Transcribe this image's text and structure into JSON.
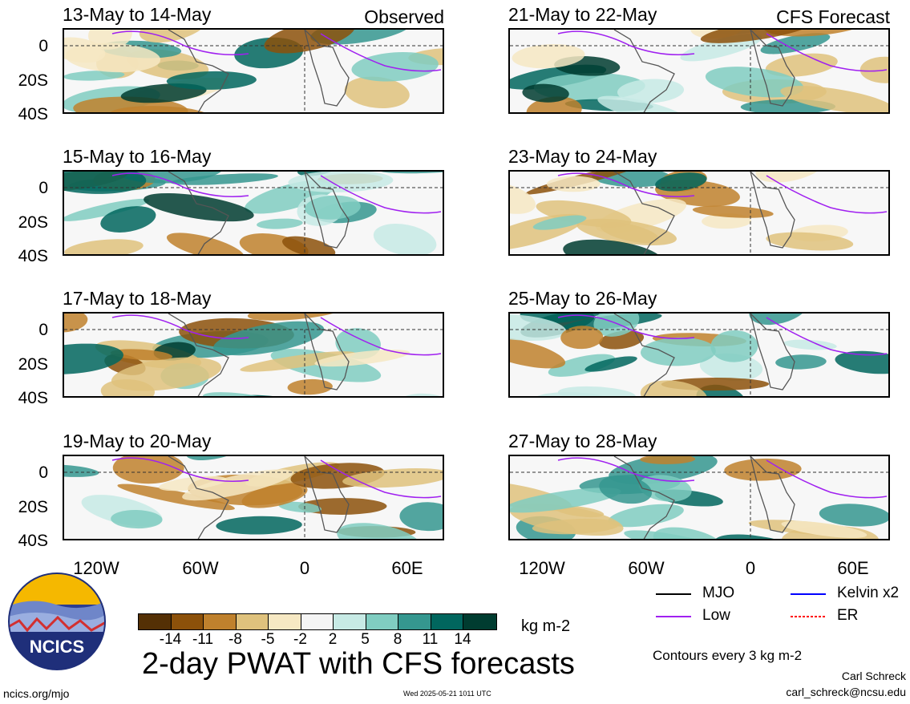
{
  "panels": [
    {
      "title": "13-May to 14-May",
      "label": "Observed"
    },
    {
      "title": "15-May to 16-May",
      "label": ""
    },
    {
      "title": "17-May to 18-May",
      "label": ""
    },
    {
      "title": "19-May to 20-May",
      "label": ""
    },
    {
      "title": "21-May to 22-May",
      "label": "CFS Forecast"
    },
    {
      "title": "23-May to 24-May",
      "label": ""
    },
    {
      "title": "25-May to 26-May",
      "label": ""
    },
    {
      "title": "27-May to 28-May",
      "label": ""
    }
  ],
  "lat_ticks": [
    "0",
    "20S",
    "40S"
  ],
  "lon_ticks": [
    "120W",
    "60W",
    "0",
    "60E"
  ],
  "colorbar": {
    "colors": [
      "#543005",
      "#8c510a",
      "#bf812d",
      "#dfc27d",
      "#f6e8c3",
      "#f5f5f5",
      "#c7eae5",
      "#80cdc1",
      "#35978f",
      "#01665e",
      "#003c30"
    ],
    "labels": [
      "-14",
      "-11",
      "-8",
      "-5",
      "-2",
      "2",
      "5",
      "8",
      "11",
      "14"
    ],
    "units": "kg m-2"
  },
  "legend": [
    {
      "name": "MJO",
      "color": "#000000"
    },
    {
      "name": "Kelvin x2",
      "color": "#0000ff"
    },
    {
      "name": "Low",
      "color": "#a020f0"
    },
    {
      "name": "ER",
      "color": "#ff0000"
    }
  ],
  "contour_note": "Contours every 3 kg m-2",
  "main_title": "2-day PWAT with CFS forecasts",
  "logo_text": "NCICS",
  "website": "ncics.org/mjo",
  "timestamp": "Wed 2025-05-21 1011 UTC",
  "author": "Carl Schreck",
  "email": "carl_schreck@ncsu.edu"
}
